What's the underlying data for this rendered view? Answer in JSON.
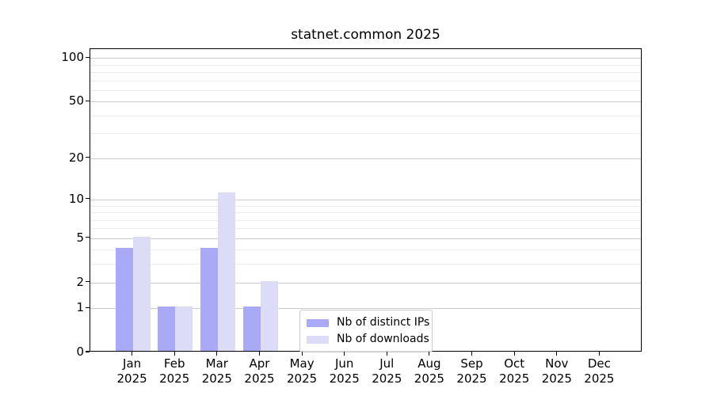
{
  "figure": {
    "title": "statnet.common 2025"
  },
  "chart_data": {
    "type": "bar",
    "title": "statnet.common 2025",
    "categories": [
      "Jan 2025",
      "Feb 2025",
      "Mar 2025",
      "Apr 2025",
      "May 2025",
      "Jun 2025",
      "Jul 2025",
      "Aug 2025",
      "Sep 2025",
      "Oct 2025",
      "Nov 2025",
      "Dec 2025"
    ],
    "x_tick_month": [
      "Jan",
      "Feb",
      "Mar",
      "Apr",
      "May",
      "Jun",
      "Jul",
      "Aug",
      "Sep",
      "Oct",
      "Nov",
      "Dec"
    ],
    "x_tick_year": "2025",
    "series": [
      {
        "name": "Nb of distinct IPs",
        "color": "#a9a9f5",
        "values": [
          4,
          1,
          4,
          1,
          0,
          0,
          0,
          0,
          0,
          0,
          0,
          0
        ]
      },
      {
        "name": "Nb of downloads",
        "color": "#dcdcf7",
        "values": [
          5,
          1,
          11,
          2,
          0,
          0,
          0,
          0,
          0,
          0,
          0,
          0
        ]
      }
    ],
    "yscale": "log1p",
    "ylim": [
      0,
      115
    ],
    "y_major_ticks": [
      0,
      1,
      2,
      5,
      10,
      20,
      50,
      100
    ],
    "y_minor_gridlines": [
      3,
      4,
      6,
      7,
      8,
      9,
      30,
      40,
      60,
      70,
      80,
      90
    ],
    "grid": "horizontal",
    "legend_position": "lower-center-inside",
    "xlabel": "",
    "ylabel": ""
  },
  "legend": {
    "items": [
      {
        "label": "Nb of distinct IPs",
        "color": "#a9a9f5"
      },
      {
        "label": "Nb of downloads",
        "color": "#dcdcf7"
      }
    ]
  },
  "colors": {
    "background": "#ffffff",
    "axis": "#000000",
    "major_gridline": "#cbcbcb",
    "minor_gridline": "#ededed",
    "bar_distinct_ips": "#a9a9f5",
    "bar_downloads": "#dcdcf7",
    "text": "#000000"
  }
}
